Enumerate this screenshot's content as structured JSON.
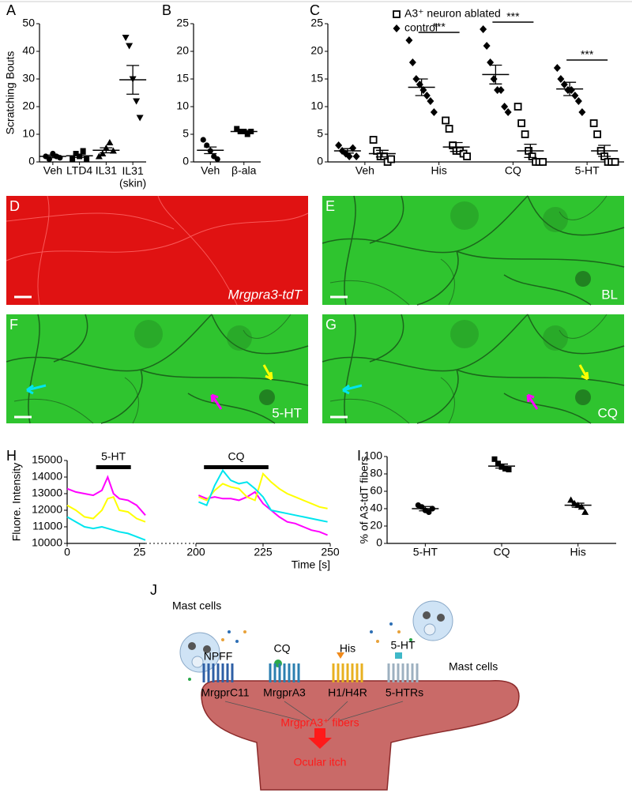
{
  "panel_labels": [
    "A",
    "B",
    "C",
    "D",
    "E",
    "F",
    "G",
    "H",
    "I",
    "J"
  ],
  "chart_data": [
    {
      "type": "dot",
      "ylabel": "Scratching Bouts",
      "categories": [
        "Veh",
        "LTD4",
        "IL31",
        "IL31 (skin)"
      ],
      "markers": [
        "circle",
        "square",
        "triangle",
        "triangle-down"
      ],
      "color": "#000000",
      "points": [
        [
          2,
          1,
          3,
          2,
          1.5
        ],
        [
          1,
          3,
          2,
          4,
          1
        ],
        [
          2,
          3,
          5,
          7,
          4
        ],
        [
          45,
          42,
          30,
          22,
          16
        ]
      ],
      "means": [
        2,
        2.2,
        4.2,
        29.7
      ],
      "sems": [
        0.5,
        0.6,
        0.9,
        5.2
      ],
      "ylim": [
        0,
        50
      ],
      "yticks": [
        0,
        10,
        20,
        30,
        40,
        50
      ]
    },
    {
      "type": "dot",
      "categories": [
        "Veh",
        "β-ala"
      ],
      "markers": [
        "circle",
        "square"
      ],
      "color": "#000000",
      "points": [
        [
          4,
          3,
          2,
          1,
          0.5
        ],
        [
          6,
          5.5,
          5.5,
          5,
          5.5
        ]
      ],
      "means": [
        2.1,
        5.5
      ],
      "sems": [
        0.6,
        0.2
      ],
      "ylim": [
        0,
        25
      ],
      "yticks": [
        0,
        5,
        10,
        15,
        20,
        25
      ]
    },
    {
      "type": "dot",
      "categories": [
        "Veh",
        "His",
        "CQ",
        "5-HT"
      ],
      "color": "#000000",
      "series": [
        {
          "name": "A3⁺ neuron ablated",
          "marker": "open-square",
          "points": [
            [
              4,
              2,
              1,
              1,
              0,
              0.5
            ],
            [
              7.5,
              6,
              3,
              2,
              2,
              1.5,
              1
            ],
            [
              10,
              7,
              5,
              2,
              1,
              0,
              0,
              0
            ],
            [
              7,
              5,
              2,
              1,
              0,
              0,
              0
            ]
          ],
          "means": [
            1.5,
            2.7,
            2,
            2
          ],
          "sems": [
            0.6,
            0.8,
            1.2,
            1
          ]
        },
        {
          "name": "control",
          "marker": "diamond",
          "points": [
            [
              3,
              2,
              1.5,
              1,
              2.5,
              1
            ],
            [
              22,
              18,
              15,
              14,
              13,
              12,
              11,
              9
            ],
            [
              24,
              21,
              18,
              15,
              13,
              13,
              10,
              9
            ],
            [
              17,
              15,
              14,
              13,
              13,
              12,
              11,
              9
            ]
          ],
          "means": [
            2,
            13.5,
            15.8,
            13.2
          ],
          "sems": [
            0.4,
            1.5,
            1.7,
            1.2
          ]
        }
      ],
      "significance": [
        null,
        "***",
        "***",
        "***"
      ],
      "ylim": [
        0,
        25
      ],
      "yticks": [
        0,
        5,
        10,
        15,
        20,
        25
      ]
    },
    {
      "type": "line",
      "ylabel": "Fluore. Intensity",
      "xlabel": "Time [s]",
      "ylim": [
        10000,
        15000
      ],
      "yticks": [
        10000,
        11000,
        12000,
        13000,
        14000,
        15000
      ],
      "segments": [
        {
          "xlim": [
            0,
            27
          ],
          "xticks": [
            0,
            25
          ]
        },
        {
          "xlim": [
            200,
            250
          ],
          "xticks": [
            200,
            225,
            250
          ]
        }
      ],
      "annotations": [
        {
          "text": "5-HT",
          "x": [
            10,
            22
          ]
        },
        {
          "text": "CQ",
          "x": [
            203,
            227
          ]
        }
      ],
      "series": [
        {
          "color": "#ff00ff",
          "segments": [
            {
              "x": [
                0,
                3,
                6,
                9,
                12,
                14,
                16,
                18,
                21,
                24,
                27
              ],
              "values": [
                13300,
                13100,
                13000,
                12900,
                13200,
                14000,
                13000,
                12700,
                12600,
                12300,
                11700
              ]
            },
            {
              "x": [
                201,
                204,
                207,
                210,
                213,
                216,
                219,
                222,
                225,
                228,
                231,
                234,
                237,
                240,
                243,
                246,
                249
              ],
              "values": [
                12900,
                12700,
                12800,
                12700,
                12700,
                12600,
                12800,
                13100,
                12400,
                12000,
                11600,
                11300,
                11200,
                11000,
                10800,
                10700,
                10500
              ]
            }
          ]
        },
        {
          "color": "#ffff00",
          "segments": [
            {
              "x": [
                0,
                3,
                6,
                9,
                12,
                14,
                16,
                18,
                21,
                24,
                27
              ],
              "values": [
                12300,
                12000,
                11600,
                11500,
                12000,
                12700,
                12800,
                12000,
                11900,
                11500,
                11300
              ]
            },
            {
              "x": [
                201,
                204,
                207,
                210,
                213,
                216,
                219,
                222,
                225,
                228,
                231,
                234,
                237,
                240,
                243,
                246,
                249
              ],
              "values": [
                12800,
                12600,
                13200,
                13600,
                13400,
                13300,
                12800,
                12600,
                14200,
                13700,
                13300,
                13000,
                12800,
                12600,
                12400,
                12200,
                12100
              ]
            }
          ]
        },
        {
          "color": "#00e5ee",
          "segments": [
            {
              "x": [
                0,
                3,
                6,
                9,
                12,
                14,
                16,
                18,
                21,
                24,
                27
              ],
              "values": [
                11600,
                11300,
                11000,
                10900,
                11000,
                10900,
                10800,
                10700,
                10600,
                10400,
                10200
              ]
            },
            {
              "x": [
                201,
                204,
                207,
                210,
                213,
                216,
                219,
                222,
                225,
                228,
                231,
                234,
                237,
                240,
                243,
                246,
                249
              ],
              "values": [
                12500,
                12300,
                13500,
                14400,
                13800,
                13600,
                13700,
                13300,
                12800,
                12000,
                11900,
                11800,
                11700,
                11600,
                11500,
                11400,
                11300
              ]
            }
          ]
        }
      ]
    },
    {
      "type": "dot",
      "ylabel": "% of A3-tdT fibers",
      "categories": [
        "5-HT",
        "CQ",
        "His"
      ],
      "markers": [
        "circle",
        "square",
        "triangle"
      ],
      "color": "#000000",
      "points": [
        [
          44,
          42,
          38,
          36,
          40
        ],
        [
          97,
          92,
          88,
          86,
          85
        ],
        [
          50,
          46,
          44,
          42,
          36
        ]
      ],
      "means": [
        40,
        89,
        44
      ],
      "sems": [
        2.5,
        2.3,
        2.3
      ],
      "ylim": [
        0,
        100
      ],
      "yticks": [
        0,
        20,
        40,
        60,
        80,
        100
      ]
    }
  ],
  "images": [
    {
      "label": "Mrgpra3-tdT"
    },
    {
      "label": "BL"
    },
    {
      "label": "5-HT"
    },
    {
      "label": "CQ"
    }
  ],
  "diagram": {
    "mast_cells": [
      "Mast cells",
      "Mast cells"
    ],
    "ligands": [
      "NPFF",
      "CQ",
      "His",
      "5-HT"
    ],
    "receptors": [
      "MrgprC11",
      "MrgprA3",
      "H1/H4R",
      "5-HTRs"
    ],
    "fibers": "MrgprA3⁺ fibers",
    "outcome": "Ocular itch"
  }
}
